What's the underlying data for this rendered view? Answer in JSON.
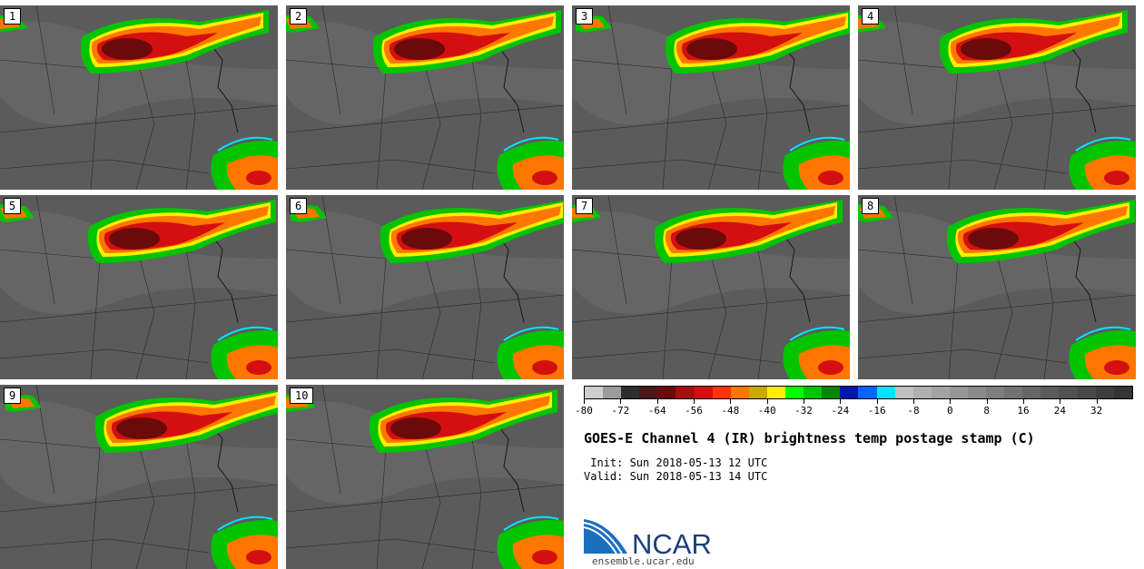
{
  "panels": [
    {
      "label": "1"
    },
    {
      "label": "2"
    },
    {
      "label": "3"
    },
    {
      "label": "4"
    },
    {
      "label": "5"
    },
    {
      "label": "6"
    },
    {
      "label": "7"
    },
    {
      "label": "8"
    },
    {
      "label": "9"
    },
    {
      "label": "10"
    }
  ],
  "colorbar": {
    "colors": [
      "#cfcfcf",
      "#9c9c9c",
      "#2e2e2e",
      "#4a1616",
      "#6b0a0a",
      "#a50f0f",
      "#d40f0f",
      "#ff3300",
      "#ff7700",
      "#c9a800",
      "#ffee00",
      "#00ff00",
      "#00c400",
      "#008800",
      "#0018a8",
      "#0066ff",
      "#00e5ff",
      "#bfbfbf",
      "#b0b0b0",
      "#a3a3a3",
      "#979797",
      "#8a8a8a",
      "#7e7e7e",
      "#727272",
      "#666666",
      "#5b5b5b",
      "#515151",
      "#474747",
      "#3d3d3d",
      "#343434"
    ],
    "ticks": [
      "-80",
      "-72",
      "-64",
      "-56",
      "-48",
      "-40",
      "-32",
      "-24",
      "-16",
      "-8",
      "0",
      "8",
      "16",
      "24",
      "32"
    ]
  },
  "title": "GOES-E Channel 4 (IR) brightness temp postage stamp (C)",
  "init": " Init: Sun 2018-05-13 12 UTC",
  "valid": "Valid: Sun 2018-05-13 14 UTC",
  "logo_text": "NCAR",
  "url": "ensemble.ucar.edu",
  "logo_icon": "ncar-swoosh-icon"
}
